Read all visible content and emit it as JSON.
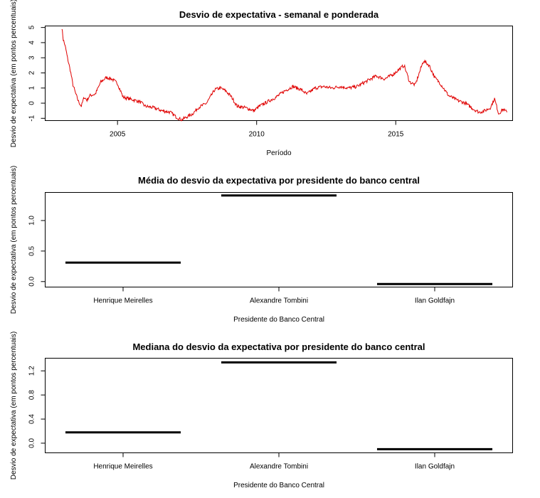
{
  "chart_data": [
    {
      "type": "line",
      "title": "Desvio de expectativa - semanal e ponderada",
      "xlabel": "Período",
      "ylabel": "Desvio de expectativa (em pontos percentuais)",
      "xlim": [
        2002.4,
        2019.2
      ],
      "ylim": [
        -1.15,
        5.1
      ],
      "x_ticks": [
        2005,
        2010,
        2015
      ],
      "y_ticks": [
        -1,
        0,
        1,
        2,
        3,
        4,
        5
      ],
      "color": "#e00000",
      "series": [
        {
          "x": [
            2003.0,
            2003.05,
            2003.1,
            2003.15,
            2003.2,
            2003.3,
            2003.4,
            2003.5,
            2003.6,
            2003.7,
            2003.8,
            2003.9,
            2004.0,
            2004.2,
            2004.4,
            2004.6,
            2004.8,
            2005.0,
            2005.2,
            2005.4,
            2005.6,
            2005.8,
            2006.0,
            2006.3,
            2006.6,
            2006.9,
            2007.1,
            2007.3,
            2007.5,
            2007.7,
            2007.9,
            2008.2,
            2008.5,
            2008.7,
            2008.9,
            2009.1,
            2009.3,
            2009.6,
            2009.9,
            2010.1,
            2010.4,
            2010.7,
            2011.0,
            2011.3,
            2011.6,
            2011.8,
            2012.1,
            2012.4,
            2012.7,
            2013.0,
            2013.3,
            2013.6,
            2014.0,
            2014.3,
            2014.6,
            2014.9,
            2015.1,
            2015.3,
            2015.5,
            2015.7,
            2015.9,
            2016.0,
            2016.2,
            2016.4,
            2016.6,
            2016.9,
            2017.2,
            2017.5,
            2017.8,
            2018.0,
            2018.2,
            2018.4,
            2018.55,
            2018.7,
            2018.85,
            2019.0
          ],
          "y": [
            5.0,
            4.2,
            3.9,
            3.5,
            3.0,
            2.2,
            1.2,
            0.6,
            0.1,
            -0.2,
            0.4,
            0.2,
            0.5,
            0.6,
            1.4,
            1.7,
            1.6,
            1.3,
            0.4,
            0.3,
            0.2,
            0.1,
            -0.2,
            -0.3,
            -0.5,
            -0.6,
            -0.9,
            -1.1,
            -0.9,
            -0.7,
            -0.3,
            0.0,
            0.9,
            1.0,
            0.8,
            0.4,
            -0.2,
            -0.3,
            -0.5,
            -0.2,
            0.1,
            0.4,
            0.8,
            1.1,
            0.9,
            0.6,
            1.0,
            1.1,
            1.0,
            1.1,
            1.0,
            1.1,
            1.5,
            1.8,
            1.6,
            1.9,
            2.2,
            2.5,
            1.4,
            1.2,
            2.3,
            2.8,
            2.5,
            1.7,
            1.3,
            0.5,
            0.2,
            0.0,
            -0.4,
            -0.6,
            -0.5,
            -0.3,
            0.3,
            -0.7,
            -0.4,
            -0.6
          ]
        }
      ]
    },
    {
      "type": "bar",
      "title": "Média do desvio da expectativa por presidente do banco central",
      "xlabel": "Presidente do Banco Central",
      "ylabel": "Desvio de expectativa (em pontos percentuais)",
      "categories": [
        "Henrique Meirelles",
        "Alexandre Tombini",
        "Ilan Goldfajn"
      ],
      "values": [
        0.31,
        1.41,
        -0.04
      ],
      "ylim": [
        -0.09,
        1.46
      ],
      "y_ticks": [
        "0.0",
        "0.5",
        "1.0"
      ]
    },
    {
      "type": "bar",
      "title": "Mediana do desvio da expectativa por presidente do banco central",
      "xlabel": "Presidente do Banco Central",
      "ylabel": "Desvio de expectativa (em pontos percentuais)",
      "categories": [
        "Henrique Meirelles",
        "Alexandre Tombini",
        "Ilan Goldfajn"
      ],
      "values": [
        0.18,
        1.34,
        -0.1
      ],
      "ylim": [
        -0.16,
        1.41
      ],
      "y_ticks": [
        "0.0",
        "0.4",
        "0.8",
        "1.2"
      ]
    }
  ]
}
